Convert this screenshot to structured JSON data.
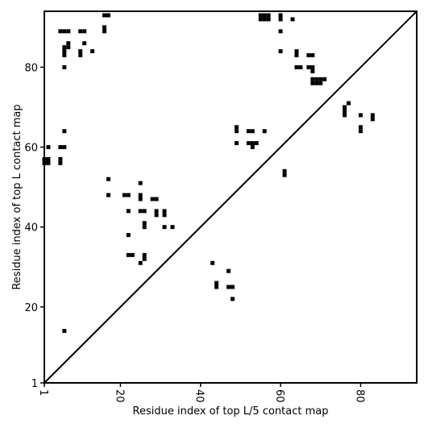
{
  "chart_data": {
    "type": "heatmap",
    "title": "",
    "xlabel": "Residue index of top L/5 contact map",
    "ylabel": "Residue index of top L contact map",
    "xlim": [
      1,
      94
    ],
    "ylim": [
      1,
      94
    ],
    "x_ticks": [
      {
        "value": 1,
        "label": "1"
      },
      {
        "value": 20,
        "label": "20"
      },
      {
        "value": 40,
        "label": "40"
      },
      {
        "value": 60,
        "label": "60"
      },
      {
        "value": 80,
        "label": "80"
      }
    ],
    "y_ticks": [
      {
        "value": 1,
        "label": "1"
      },
      {
        "value": 20,
        "label": "20"
      },
      {
        "value": 40,
        "label": "40"
      },
      {
        "value": 60,
        "label": "60"
      },
      {
        "value": 80,
        "label": "80"
      }
    ],
    "diagonal": true,
    "grid": false,
    "cell_color": "#000000",
    "contacts": [
      [
        1,
        56
      ],
      [
        1,
        57
      ],
      [
        2,
        56
      ],
      [
        2,
        57
      ],
      [
        2,
        60
      ],
      [
        5,
        56
      ],
      [
        5,
        57
      ],
      [
        5,
        60
      ],
      [
        6,
        60
      ],
      [
        5,
        89
      ],
      [
        6,
        89
      ],
      [
        7,
        89
      ],
      [
        6,
        84
      ],
      [
        6,
        85
      ],
      [
        7,
        85
      ],
      [
        7,
        86
      ],
      [
        6,
        83
      ],
      [
        6,
        80
      ],
      [
        6,
        64
      ],
      [
        6,
        14
      ],
      [
        10,
        89
      ],
      [
        11,
        89
      ],
      [
        10,
        84
      ],
      [
        10,
        83
      ],
      [
        11,
        86
      ],
      [
        13,
        84
      ],
      [
        16,
        93
      ],
      [
        17,
        93
      ],
      [
        16,
        89
      ],
      [
        16,
        90
      ],
      [
        17,
        52
      ],
      [
        17,
        48
      ],
      [
        21,
        48
      ],
      [
        22,
        48
      ],
      [
        22,
        44
      ],
      [
        22,
        38
      ],
      [
        22,
        33
      ],
      [
        23,
        33
      ],
      [
        25,
        51
      ],
      [
        25,
        47
      ],
      [
        25,
        48
      ],
      [
        25,
        44
      ],
      [
        26,
        44
      ],
      [
        26,
        40
      ],
      [
        26,
        41
      ],
      [
        25,
        31
      ],
      [
        26,
        32
      ],
      [
        26,
        33
      ],
      [
        28,
        47
      ],
      [
        29,
        47
      ],
      [
        29,
        43
      ],
      [
        29,
        44
      ],
      [
        31,
        43
      ],
      [
        31,
        44
      ],
      [
        31,
        40
      ],
      [
        33,
        40
      ],
      [
        43,
        31
      ],
      [
        44,
        25
      ],
      [
        44,
        26
      ],
      [
        47,
        29
      ],
      [
        47,
        25
      ],
      [
        48,
        25
      ],
      [
        48,
        22
      ],
      [
        49,
        64
      ],
      [
        49,
        65
      ],
      [
        49,
        61
      ],
      [
        52,
        64
      ],
      [
        53,
        64
      ],
      [
        52,
        61
      ],
      [
        53,
        61
      ],
      [
        54,
        61
      ],
      [
        53,
        60
      ],
      [
        56,
        64
      ],
      [
        55,
        93
      ],
      [
        56,
        93
      ],
      [
        57,
        93
      ],
      [
        55,
        92
      ],
      [
        56,
        92
      ],
      [
        57,
        92
      ],
      [
        60,
        92
      ],
      [
        60,
        93
      ],
      [
        60,
        89
      ],
      [
        60,
        84
      ],
      [
        61,
        53
      ],
      [
        61,
        54
      ],
      [
        63,
        92
      ],
      [
        64,
        83
      ],
      [
        64,
        84
      ],
      [
        64,
        80
      ],
      [
        65,
        80
      ],
      [
        67,
        83
      ],
      [
        68,
        83
      ],
      [
        67,
        80
      ],
      [
        68,
        80
      ],
      [
        68,
        79
      ],
      [
        68,
        76
      ],
      [
        69,
        76
      ],
      [
        70,
        76
      ],
      [
        68,
        77
      ],
      [
        69,
        77
      ],
      [
        70,
        77
      ],
      [
        71,
        77
      ],
      [
        76,
        69
      ],
      [
        76,
        70
      ],
      [
        76,
        68
      ],
      [
        77,
        71
      ],
      [
        80,
        68
      ],
      [
        80,
        64
      ],
      [
        80,
        65
      ],
      [
        83,
        67
      ],
      [
        83,
        68
      ]
    ]
  }
}
